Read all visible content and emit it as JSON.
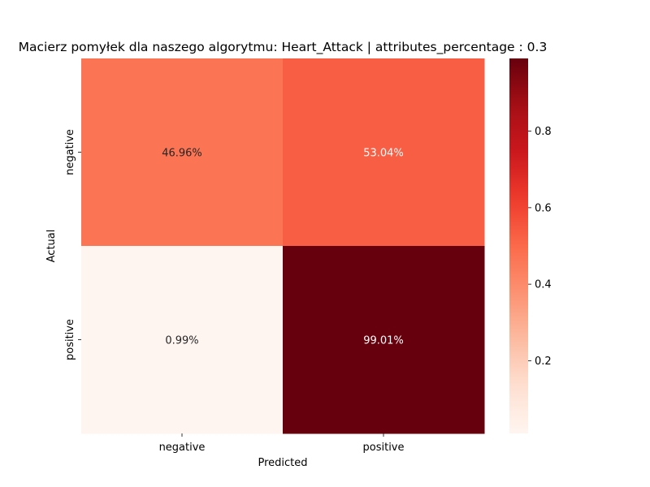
{
  "chart_data": {
    "type": "heatmap",
    "title": "Macierz pomyłek dla naszego algorytmu: Heart_Attack | attributes_percentage : 0.3",
    "xlabel": "Predicted",
    "ylabel": "Actual",
    "x_categories": [
      "negative",
      "positive"
    ],
    "y_categories": [
      "negative",
      "positive"
    ],
    "values": [
      [
        0.4696,
        0.5304
      ],
      [
        0.0099,
        0.9901
      ]
    ],
    "cell_labels": [
      [
        "46.96%",
        "53.04%"
      ],
      [
        "0.99%",
        "99.01%"
      ]
    ],
    "colormap": "Reds",
    "color_range": [
      0.0099,
      0.9901
    ],
    "colorbar_ticks": [
      0.2,
      0.4,
      0.6,
      0.8
    ],
    "colorbar_tick_labels": [
      "0.2",
      "0.4",
      "0.6",
      "0.8"
    ],
    "legend": "colorbar-right"
  }
}
